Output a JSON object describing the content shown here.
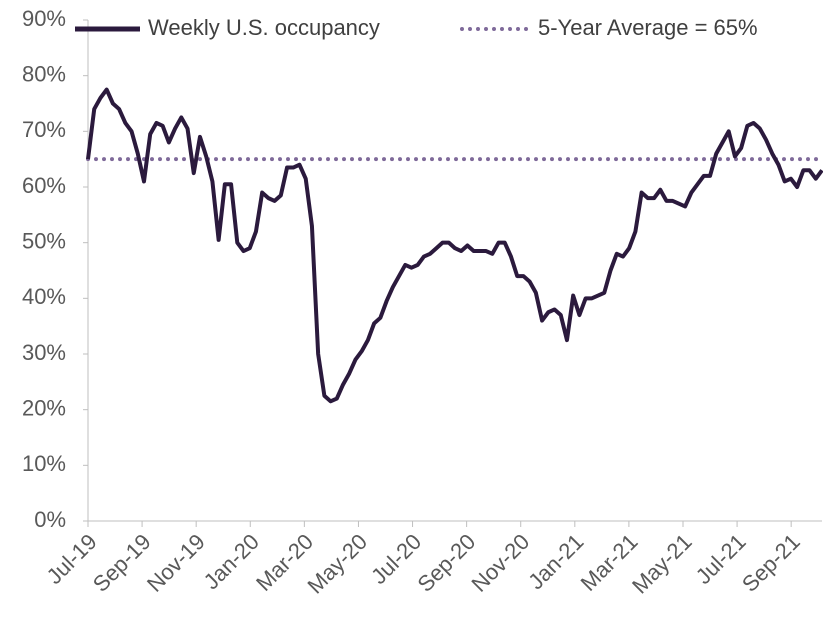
{
  "chart_data": {
    "type": "line",
    "x": [
      0,
      0.23,
      0.46,
      0.69,
      0.92,
      1.15,
      1.38,
      1.61,
      1.84,
      2.07,
      2.3,
      2.53,
      2.76,
      2.99,
      3.22,
      3.45,
      3.68,
      3.91,
      4.14,
      4.37,
      4.6,
      4.83,
      5.06,
      5.29,
      5.52,
      5.75,
      5.98,
      6.21,
      6.44,
      6.67,
      6.9,
      7.13,
      7.36,
      7.59,
      7.82,
      8.05,
      8.28,
      8.51,
      8.74,
      8.97,
      9.2,
      9.43,
      9.66,
      9.89,
      10.12,
      10.35,
      10.58,
      10.81,
      11.04,
      11.27,
      11.5,
      11.73,
      11.96,
      12.19,
      12.42,
      12.65,
      12.88,
      13.11,
      13.34,
      13.57,
      13.8,
      14.03,
      14.26,
      14.49,
      14.72,
      14.95,
      15.18,
      15.41,
      15.64,
      15.87,
      16.1,
      16.33,
      16.56,
      16.79,
      17.02,
      17.25,
      17.48,
      17.71,
      17.94,
      18.17,
      18.4,
      18.63,
      18.86,
      19.09,
      19.32,
      19.55,
      19.78,
      20.01,
      20.24,
      20.47,
      20.7,
      20.93,
      21.16,
      21.39,
      21.62,
      21.85,
      22.08,
      22.31,
      22.54,
      22.77,
      23,
      23.23,
      23.46,
      23.69,
      23.92,
      24.15,
      24.38,
      24.61,
      24.84,
      25.07,
      25.3,
      25.53,
      25.76,
      25.99,
      26.22,
      26.45,
      26.68,
      26.91,
      27.14
    ],
    "series": [
      {
        "name": "Weekly U.S. occupancy",
        "color": "#2b1a3d",
        "values": [
          65,
          74,
          76,
          77.5,
          75,
          74,
          71.5,
          70,
          66,
          61,
          69.5,
          71.5,
          71,
          68,
          70.5,
          72.5,
          70.5,
          62.5,
          69,
          65.5,
          61,
          50.5,
          60.5,
          60.5,
          50,
          48.5,
          49,
          52,
          59,
          58,
          57.5,
          58.5,
          63.5,
          63.5,
          64,
          61.5,
          53,
          30,
          22.5,
          21.5,
          22,
          24.5,
          26.5,
          29,
          30.5,
          32.5,
          35.5,
          36.5,
          39.5,
          42,
          44,
          46,
          45.5,
          46,
          47.5,
          48,
          49,
          50,
          50,
          49,
          48.5,
          49.5,
          48.5,
          48.5,
          48.5,
          48,
          50,
          50,
          47.5,
          44,
          44,
          43,
          41,
          36,
          37.5,
          38,
          37,
          32.5,
          40.5,
          37,
          40,
          40,
          40.5,
          41,
          45,
          48,
          47.5,
          49,
          52,
          59,
          58,
          58,
          59.5,
          57.5,
          57.5,
          57,
          56.5,
          59,
          60.5,
          62,
          62,
          66,
          68,
          70,
          65.5,
          67,
          71,
          71.5,
          70.5,
          68.5,
          66,
          64,
          61,
          61.5,
          60,
          63,
          63,
          61.5,
          63
        ]
      }
    ],
    "average": {
      "name": "5-Year Average = 65%",
      "value": 65,
      "color": "#7f6a9a"
    },
    "xlim": [
      0,
      27.14
    ],
    "xticks": [
      {
        "value": 0,
        "label": "Jul-19"
      },
      {
        "value": 2,
        "label": "Sep-19"
      },
      {
        "value": 4,
        "label": "Nov-19"
      },
      {
        "value": 6,
        "label": "Jan-20"
      },
      {
        "value": 8,
        "label": "Mar-20"
      },
      {
        "value": 10,
        "label": "May-20"
      },
      {
        "value": 12,
        "label": "Jul-20"
      },
      {
        "value": 14,
        "label": "Sep-20"
      },
      {
        "value": 16,
        "label": "Nov-20"
      },
      {
        "value": 18,
        "label": "Jan-21"
      },
      {
        "value": 20,
        "label": "Mar-21"
      },
      {
        "value": 22,
        "label": "May-21"
      },
      {
        "value": 24,
        "label": "Jul-21"
      },
      {
        "value": 26,
        "label": "Sep-21"
      }
    ],
    "ylim": [
      0,
      90
    ],
    "yticks": [
      {
        "value": 0,
        "label": "0%"
      },
      {
        "value": 10,
        "label": "10%"
      },
      {
        "value": 20,
        "label": "20%"
      },
      {
        "value": 30,
        "label": "30%"
      },
      {
        "value": 40,
        "label": "40%"
      },
      {
        "value": 50,
        "label": "50%"
      },
      {
        "value": 60,
        "label": "60%"
      },
      {
        "value": 70,
        "label": "70%"
      },
      {
        "value": 80,
        "label": "80%"
      },
      {
        "value": 90,
        "label": "90%"
      }
    ]
  }
}
